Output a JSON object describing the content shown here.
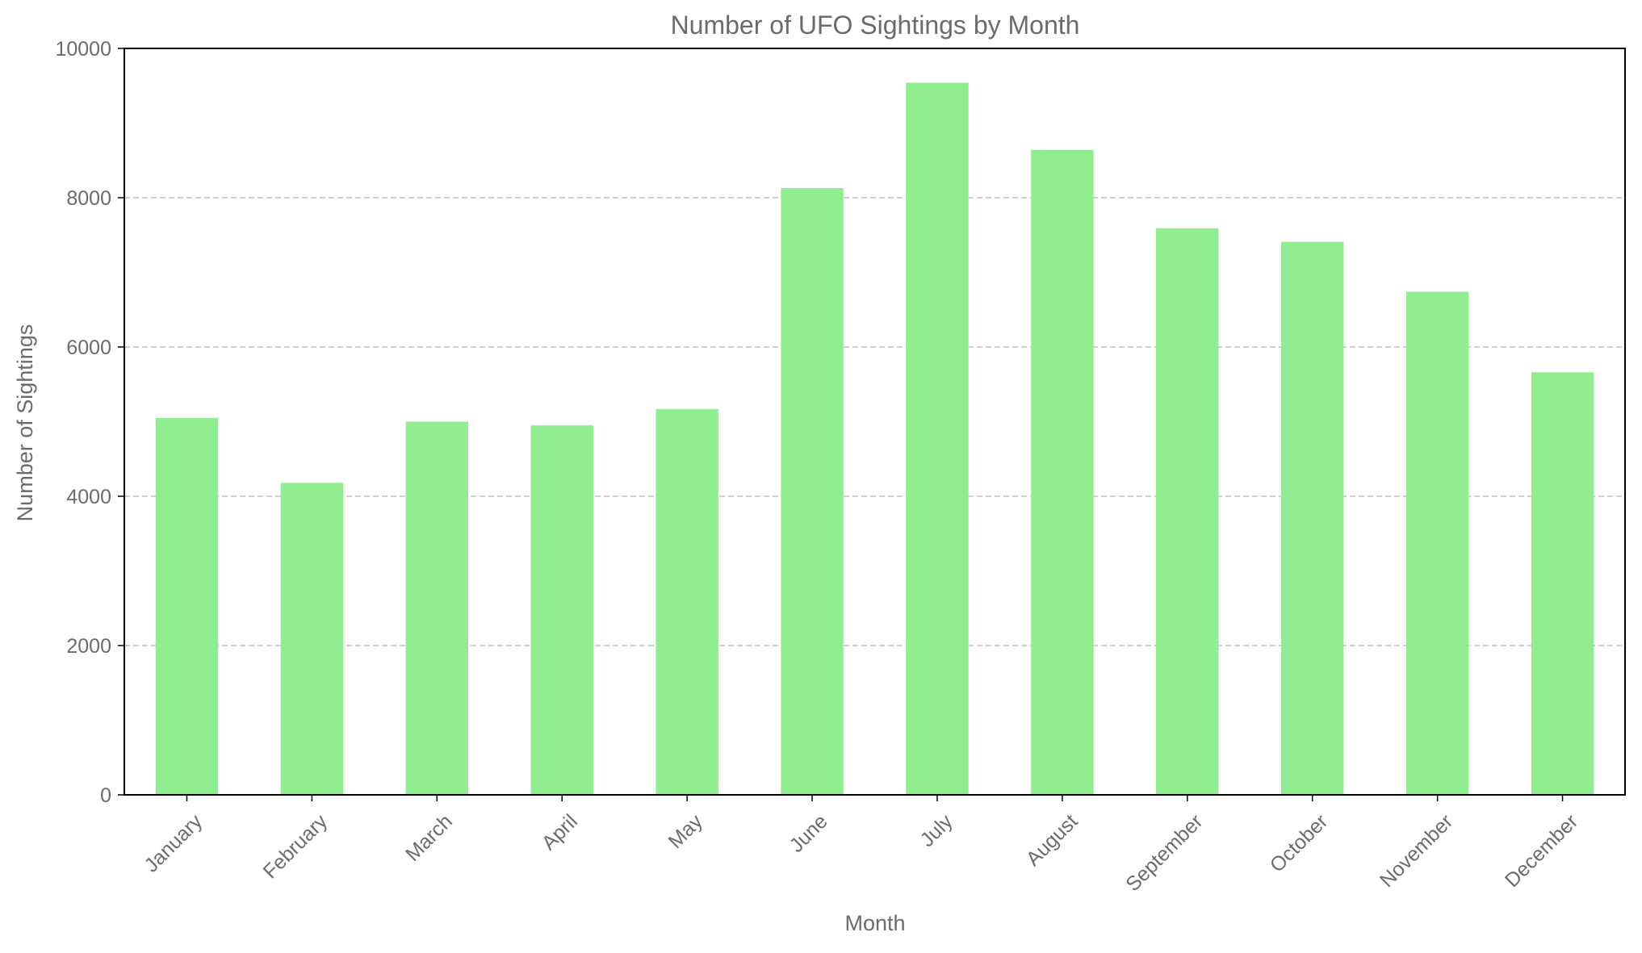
{
  "chart_data": {
    "type": "bar",
    "title": "Number of UFO Sightings by Month",
    "xlabel": "Month",
    "ylabel": "Number of Sightings",
    "categories": [
      "January",
      "February",
      "March",
      "April",
      "May",
      "June",
      "July",
      "August",
      "September",
      "October",
      "November",
      "December"
    ],
    "values": [
      5050,
      4180,
      5000,
      4950,
      5170,
      8130,
      9540,
      8640,
      7590,
      7410,
      6740,
      5660
    ],
    "ylim": [
      0,
      10000
    ],
    "yticks": [
      0,
      2000,
      4000,
      6000,
      8000,
      10000
    ],
    "grid": "y-dashed",
    "legend": "none",
    "colors": {
      "bar": "#90EE90",
      "text": "#6b6b6b",
      "grid": "#c0c0c0",
      "axis": "#000000"
    }
  }
}
